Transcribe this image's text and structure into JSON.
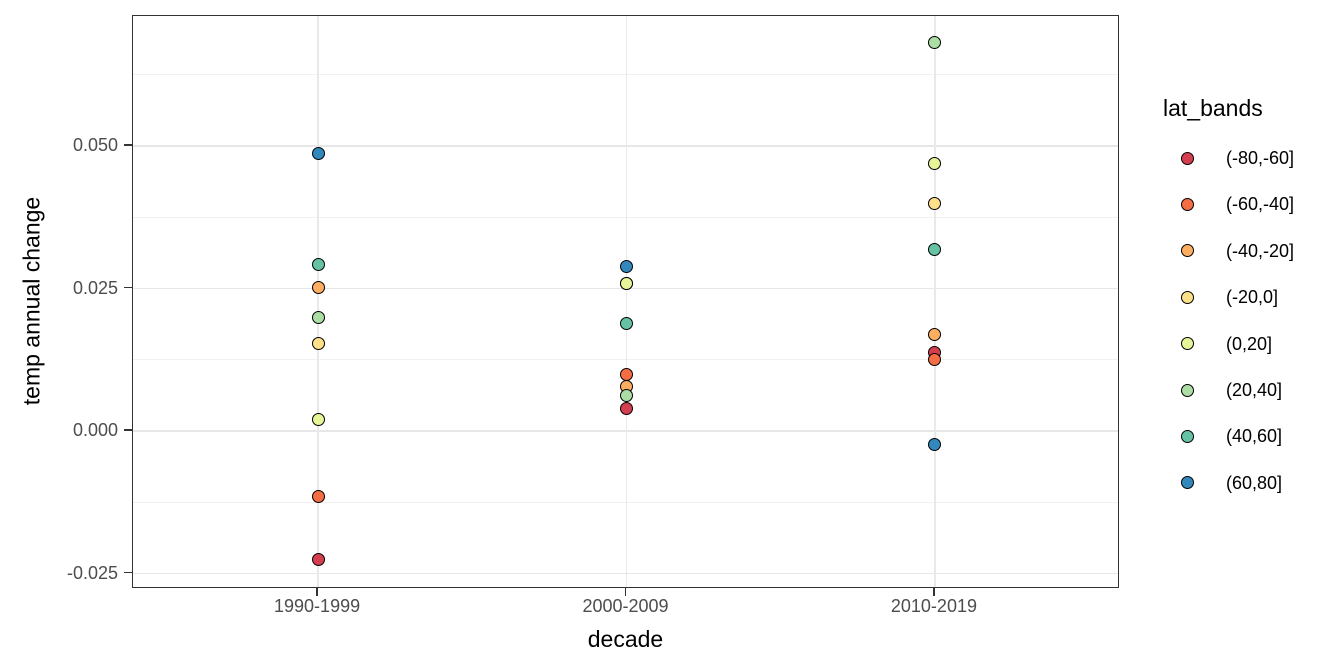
{
  "chart_data": {
    "type": "scatter",
    "title": "",
    "xlabel": "decade",
    "ylabel": "temp annual change",
    "legend_title": "lat_bands",
    "legend_position": "right",
    "grid": true,
    "categories": [
      "1990-1999",
      "2000-2009",
      "2010-2019"
    ],
    "y_tick_labels": [
      "-0.025",
      "0.000",
      "0.025",
      "0.050"
    ],
    "y_tick_values": [
      -0.025,
      0.0,
      0.025,
      0.05
    ],
    "y_minor_values": [
      -0.0125,
      0.0125,
      0.0375,
      0.0625
    ],
    "ylim": [
      -0.0277,
      0.0728
    ],
    "series": [
      {
        "name": "(-80,-60]",
        "color": "#D53E4F",
        "values": [
          -0.0226,
          0.0039,
          0.0137
        ]
      },
      {
        "name": "(-60,-40]",
        "color": "#F46D43",
        "values": [
          -0.0114,
          0.01,
          0.0125
        ]
      },
      {
        "name": "(-40,-20]",
        "color": "#FDAE61",
        "values": [
          0.0251,
          0.0079,
          0.017
        ]
      },
      {
        "name": "(-20,0]",
        "color": "#FEE08B",
        "values": [
          0.0153,
          0.0258,
          0.04
        ]
      },
      {
        "name": "(0,20]",
        "color": "#E6F598",
        "values": [
          0.0021,
          0.0258,
          0.047
        ]
      },
      {
        "name": "(20,40]",
        "color": "#ABDDA4",
        "values": [
          0.02,
          0.0063,
          0.0682
        ]
      },
      {
        "name": "(40,60]",
        "color": "#66C2A5",
        "values": [
          0.0293,
          0.0189,
          0.0319
        ]
      },
      {
        "name": "(60,80]",
        "color": "#3288BD",
        "values": [
          0.0486,
          0.0289,
          -0.0023
        ]
      }
    ],
    "theme": {
      "background": "#ffffff",
      "panel_border": "#333333",
      "grid_major": "#e7e7e7",
      "grid_minor": "#f1f1f1",
      "point_outline": "#000000",
      "tick_label_color": "#4d4d4d",
      "axis_title_color": "#000000"
    }
  }
}
